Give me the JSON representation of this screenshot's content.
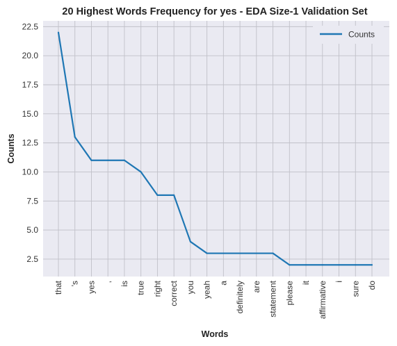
{
  "chart_data": {
    "type": "line",
    "title": "20 Highest Words Frequency for yes - EDA Size-1 Validation Set",
    "xlabel": "Words",
    "ylabel": "Counts",
    "categories": [
      "that",
      "'s",
      "yes",
      ",",
      "is",
      "true",
      "right",
      "correct",
      "you",
      "yeah",
      "a",
      "definitely",
      "are",
      "statement",
      "please",
      "it",
      "affirmative",
      "i",
      "sure",
      "do"
    ],
    "series": [
      {
        "name": "Counts",
        "values": [
          22,
          13,
          11,
          11,
          11,
          10,
          8,
          8,
          4,
          3,
          3,
          3,
          3,
          3,
          2,
          2,
          2,
          2,
          2,
          2
        ]
      }
    ],
    "ylim": [
      1.0,
      23.0
    ],
    "yticks": [
      "2.5",
      "5.0",
      "7.5",
      "10.0",
      "12.5",
      "15.0",
      "17.5",
      "20.0",
      "22.5"
    ],
    "grid": true,
    "legend_position": "top-right",
    "colors": {
      "line": "#1f77b4",
      "background": "#eaeaf2",
      "grid": "#c0c0c8"
    }
  }
}
